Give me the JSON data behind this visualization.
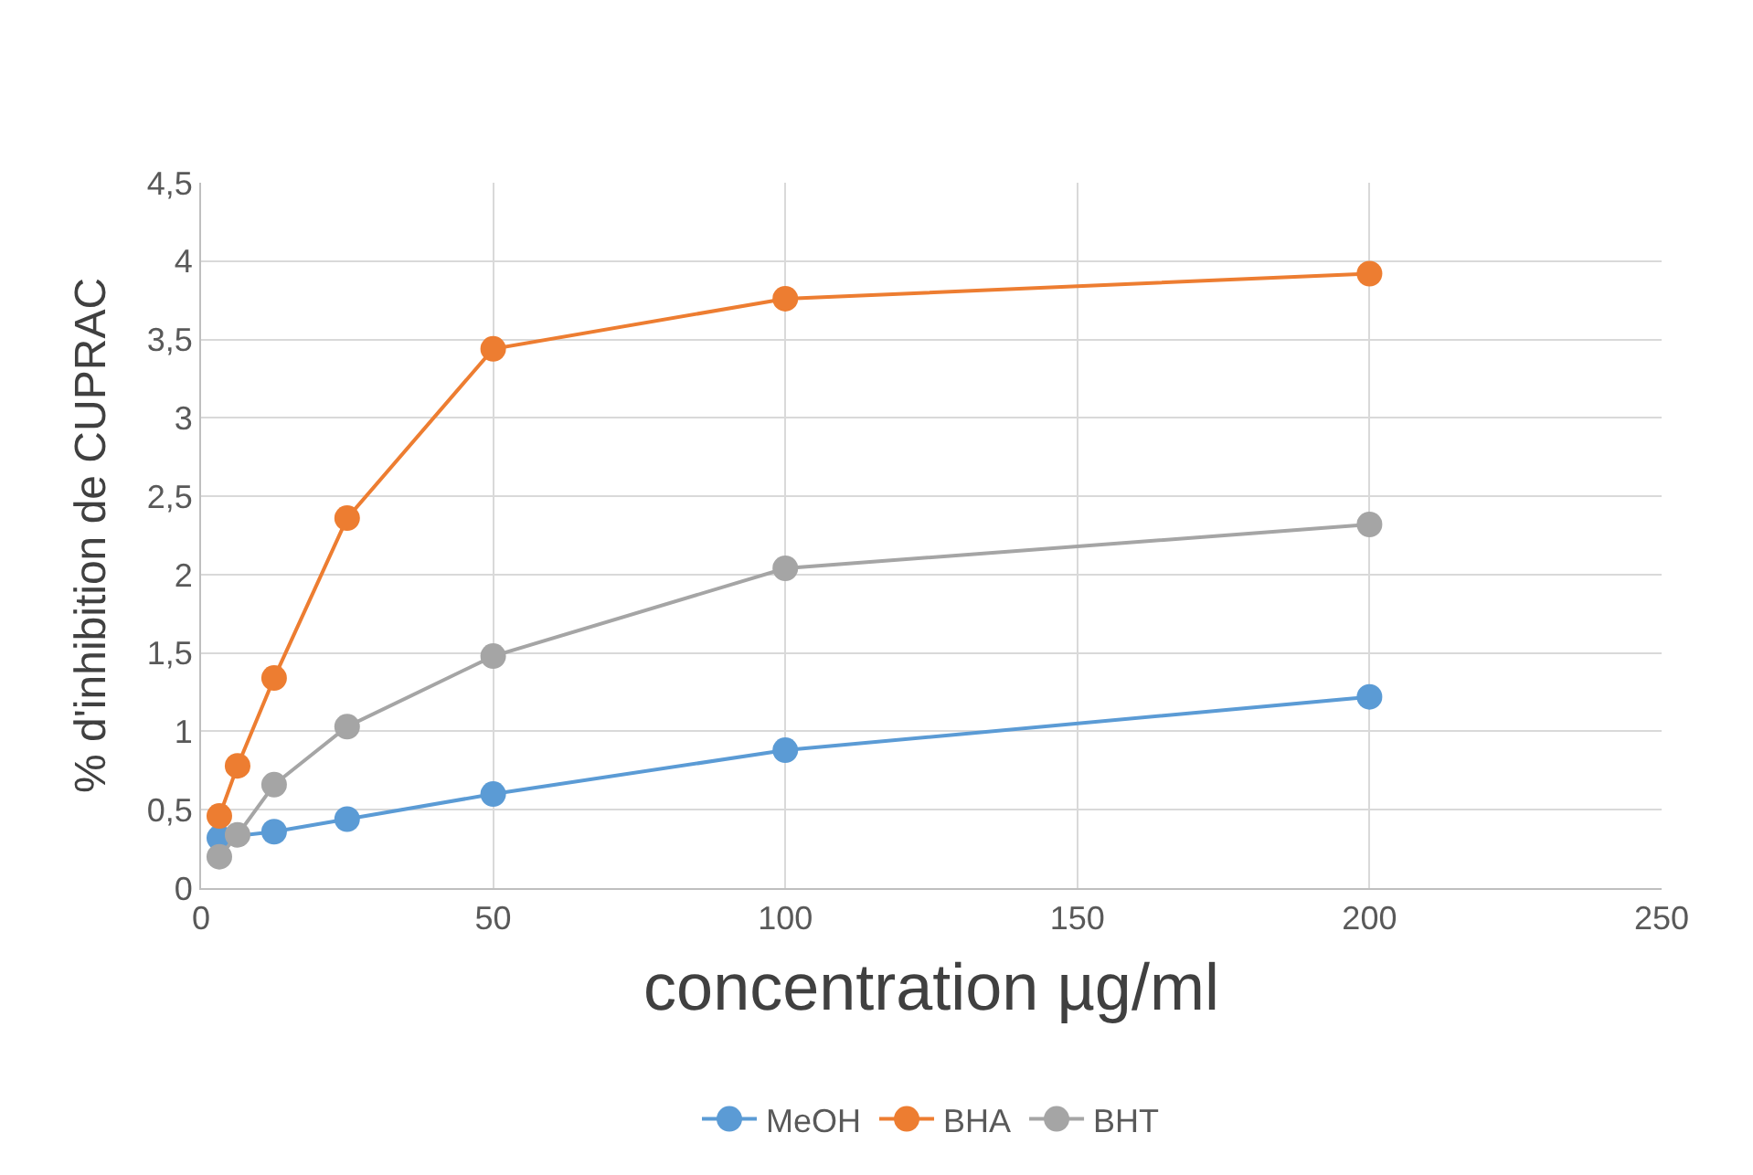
{
  "chart_data": {
    "type": "line",
    "xlabel": "concentration µg/ml",
    "ylabel": "% d'inhibition de CUPRAC",
    "x": [
      3.125,
      6.25,
      12.5,
      25,
      50,
      100,
      200
    ],
    "series": [
      {
        "name": "MeOH",
        "color": "#5b9bd5",
        "values": [
          0.32,
          null,
          0.36,
          0.44,
          0.6,
          0.88,
          1.22
        ]
      },
      {
        "name": "BHA",
        "color": "#ed7d31",
        "values": [
          0.46,
          0.78,
          1.34,
          2.36,
          3.44,
          3.76,
          3.92
        ]
      },
      {
        "name": "BHT",
        "color": "#a5a5a5",
        "values": [
          0.2,
          0.34,
          0.66,
          1.03,
          1.48,
          2.04,
          2.32
        ]
      }
    ],
    "xlim": [
      0,
      250
    ],
    "xticks": [
      0,
      50,
      100,
      150,
      200,
      250
    ],
    "ylim": [
      0,
      4.5
    ],
    "yticks": [
      0,
      {
        "value": 0.5,
        "label": "0,5"
      },
      1,
      {
        "value": 1.5,
        "label": "1,5"
      },
      2,
      {
        "value": 2.5,
        "label": "2,5"
      },
      3,
      {
        "value": 3.5,
        "label": "3,5"
      },
      4,
      {
        "value": 4.5,
        "label": "4,5"
      }
    ],
    "grid": true,
    "legend": "bottom",
    "marker": "circle",
    "line_style": "solid"
  }
}
